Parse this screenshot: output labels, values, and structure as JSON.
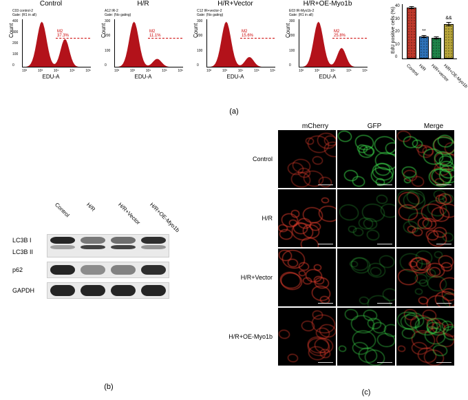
{
  "panel_a": {
    "histograms": [
      {
        "title": "Control",
        "sub1": "C03 control-2",
        "sub2": "Gate: (R1 in all)",
        "m2": "M2",
        "m2pct": "37.3%",
        "ymax": 400,
        "peak2": 0.62,
        "yticks": [
          "0",
          "100",
          "200",
          "300",
          "400"
        ]
      },
      {
        "title": "H/R",
        "sub1": "A12 IR-2",
        "sub2": "Gate: (No gating)",
        "m2": "M2",
        "m2pct": "11.1%",
        "ymax": 300,
        "peak2": 0.18,
        "yticks": [
          "0",
          "100",
          "200",
          "300"
        ]
      },
      {
        "title": "H/R+Vector",
        "sub1": "C12 IR+vector-2",
        "sub2": "Gate: (No gating)",
        "m2": "M2",
        "m2pct": "15.6%",
        "ymax": 300,
        "peak2": 0.22,
        "yticks": [
          "0",
          "100",
          "200",
          "300"
        ]
      },
      {
        "title": "H/R+OE-Myo1b",
        "sub1": "E03 IR-Myo1b-2",
        "sub2": "Gate: (R1 in all)",
        "m2": "M2",
        "m2pct": "25.8%",
        "ymax": 300,
        "peak2": 0.42,
        "yticks": [
          "0",
          "100",
          "200",
          "300"
        ]
      }
    ],
    "x_axis_label": "EDU-A",
    "y_axis_label": "Count",
    "x_ticks": [
      "10²",
      "10³",
      "10⁴",
      "10⁵",
      "10⁶"
    ],
    "barchart": {
      "ylabel": "EdU positive cells (%)",
      "ymax": 40,
      "yticks": [
        "0",
        "10",
        "20",
        "30",
        "40"
      ],
      "bars": [
        {
          "label": "Control",
          "value": 37,
          "err": 1.2,
          "color": "#c0392b",
          "sig": ""
        },
        {
          "label": "H/R",
          "value": 16,
          "err": 0.9,
          "color": "#2e72b8",
          "sig": "**"
        },
        {
          "label": "H/R+vector",
          "value": 15,
          "err": 0.8,
          "color": "#1e8449",
          "sig": ""
        },
        {
          "label": "H/R+OE-Myo1b",
          "value": 25,
          "err": 1.5,
          "color": "#b7a53a",
          "sig": "&&"
        }
      ]
    },
    "panel_label": "(a)"
  },
  "panel_b": {
    "columns": [
      "Control",
      "H/R",
      "H/R+Vector",
      "H/R+OE-Myo1b"
    ],
    "rows": [
      {
        "label": "LC3B I",
        "intensity": [
          0.95,
          0.55,
          0.6,
          0.9
        ],
        "height": 10,
        "offset": 3,
        "share": "lc3"
      },
      {
        "label": "LC3B II",
        "intensity": [
          0.35,
          0.8,
          0.8,
          0.4
        ],
        "height": 6,
        "offset": 15,
        "share": "lc3"
      },
      {
        "label": "p62",
        "intensity": [
          0.95,
          0.45,
          0.5,
          0.9
        ],
        "height": 14,
        "offset": 4
      },
      {
        "label": "GAPDH",
        "intensity": [
          0.95,
          0.95,
          0.95,
          0.95
        ],
        "height": 16,
        "offset": 3
      }
    ],
    "panel_label": "(b)"
  },
  "panel_c": {
    "col_headers": [
      "mCherry",
      "GFP",
      "Merge"
    ],
    "row_labels": [
      "Control",
      "H/R",
      "H/R+Vector",
      "H/R+OE-Myo1b"
    ],
    "channel_colors": {
      "mCherry": "#d63a2a",
      "GFP": "#3bd64a"
    },
    "intensity": {
      "Control": {
        "mCherry": 0.55,
        "GFP": 0.8
      },
      "H/R": {
        "mCherry": 0.8,
        "GFP": 0.2
      },
      "H/R+Vector": {
        "mCherry": 0.8,
        "GFP": 0.18
      },
      "H/R+OE-Myo1b": {
        "mCherry": 0.6,
        "GFP": 0.55
      }
    },
    "panel_label": "(c)"
  }
}
